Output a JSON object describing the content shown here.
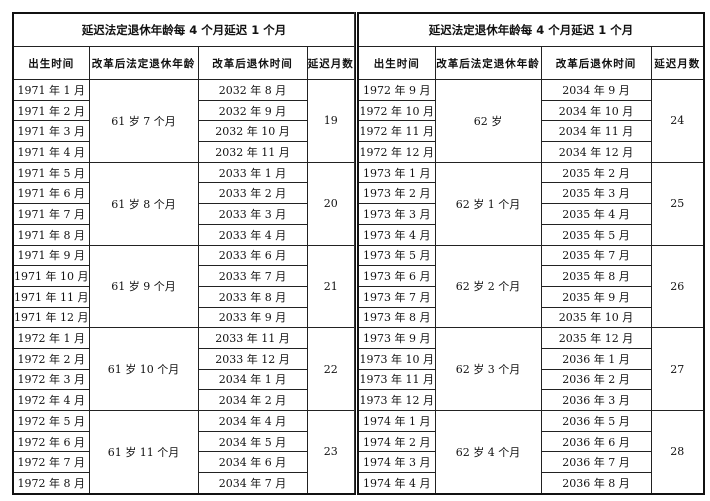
{
  "tables": [
    {
      "title": "延迟法定退休年龄每 4 个月延迟 1 个月",
      "headers": [
        "出生时间",
        "改革后法定退休年龄",
        "改革后退休时间",
        "延迟月数"
      ],
      "groups": [
        {
          "age": "61 岁 7 个月",
          "delay": "19",
          "birth": [
            "1971 年 1 月",
            "1971 年 2 月",
            "1971 年 3 月",
            "1971 年 4 月"
          ],
          "retire": [
            "2032 年 8 月",
            "2032 年 9 月",
            "2032 年 10 月",
            "2032 年 11 月"
          ]
        },
        {
          "age": "61 岁 8 个月",
          "delay": "20",
          "birth": [
            "1971 年 5 月",
            "1971 年 6 月",
            "1971 年 7 月",
            "1971 年 8 月"
          ],
          "retire": [
            "2033 年 1 月",
            "2033 年 2 月",
            "2033 年 3 月",
            "2033 年 4 月"
          ]
        },
        {
          "age": "61 岁 9 个月",
          "delay": "21",
          "birth": [
            "1971 年 9 月",
            "1971 年 10 月",
            "1971 年 11 月",
            "1971 年 12 月"
          ],
          "retire": [
            "2033 年 6 月",
            "2033 年 7 月",
            "2033 年 8 月",
            "2033 年 9 月"
          ]
        },
        {
          "age": "61 岁 10 个月",
          "delay": "22",
          "birth": [
            "1972 年 1 月",
            "1972 年 2 月",
            "1972 年 3 月",
            "1972 年 4 月"
          ],
          "retire": [
            "2033 年 11 月",
            "2033 年 12 月",
            "2034 年 1 月",
            "2034 年 2 月"
          ]
        },
        {
          "age": "61 岁 11 个月",
          "delay": "23",
          "birth": [
            "1972 年 5 月",
            "1972 年 6 月",
            "1972 年 7 月",
            "1972 年 8 月"
          ],
          "retire": [
            "2034 年 4 月",
            "2034 年 5 月",
            "2034 年 6 月",
            "2034 年 7 月"
          ]
        }
      ]
    },
    {
      "title": "延迟法定退休年龄每 4 个月延迟 1 个月",
      "headers": [
        "出生时间",
        "改革后法定退休年龄",
        "改革后退休时间",
        "延迟月数"
      ],
      "groups": [
        {
          "age": "62 岁",
          "delay": "24",
          "birth": [
            "1972 年 9 月",
            "1972 年 10 月",
            "1972 年 11 月",
            "1972 年 12 月"
          ],
          "retire": [
            "2034 年 9 月",
            "2034 年 10 月",
            "2034 年 11 月",
            "2034 年 12 月"
          ]
        },
        {
          "age": "62 岁 1 个月",
          "delay": "25",
          "birth": [
            "1973 年 1 月",
            "1973 年 2 月",
            "1973 年 3 月",
            "1973 年 4 月"
          ],
          "retire": [
            "2035 年 2 月",
            "2035 年 3 月",
            "2035 年 4 月",
            "2035 年 5 月"
          ]
        },
        {
          "age": "62 岁 2 个月",
          "delay": "26",
          "birth": [
            "1973 年 5 月",
            "1973 年 6 月",
            "1973 年 7 月",
            "1973 年 8 月"
          ],
          "retire": [
            "2035 年 7 月",
            "2035 年 8 月",
            "2035 年 9 月",
            "2035 年 10 月"
          ]
        },
        {
          "age": "62 岁 3 个月",
          "delay": "27",
          "birth": [
            "1973 年 9 月",
            "1973 年 10 月",
            "1973 年 11 月",
            "1973 年 12 月"
          ],
          "retire": [
            "2035 年 12 月",
            "2036 年 1 月",
            "2036 年 2 月",
            "2036 年 3 月"
          ]
        },
        {
          "age": "62 岁 4 个月",
          "delay": "28",
          "birth": [
            "1974 年 1 月",
            "1974 年 2 月",
            "1974 年 3 月",
            "1974 年 4 月"
          ],
          "retire": [
            "2036 年 5 月",
            "2036 年 6 月",
            "2036 年 7 月",
            "2036 年 8 月"
          ]
        }
      ]
    }
  ]
}
